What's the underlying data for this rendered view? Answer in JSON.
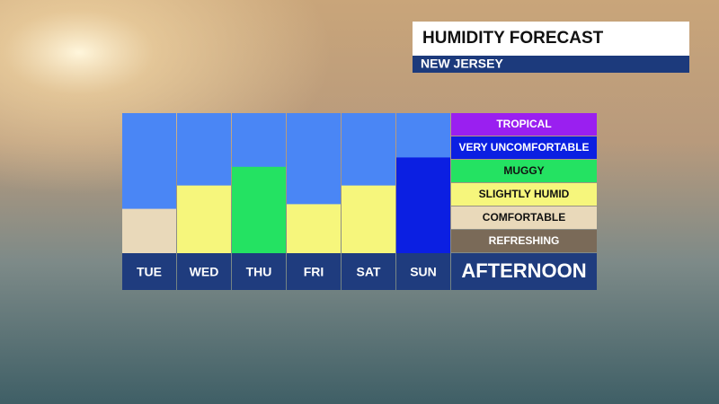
{
  "chart_data": {
    "type": "bar",
    "title": "HUMIDITY FORECAST",
    "subtitle": "NEW JERSEY",
    "period": "AFTERNOON",
    "categories": [
      "TUE",
      "WED",
      "THU",
      "FRI",
      "SAT",
      "SUN"
    ],
    "values": [
      1.9,
      2.9,
      3.7,
      2.1,
      2.9,
      4.1
    ],
    "ylim": [
      0,
      6
    ],
    "sky_color": "#4a86f5",
    "levels": [
      {
        "name": "TROPICAL",
        "color": "#9a1ff0",
        "text_color": "#ffffff"
      },
      {
        "name": "VERY UNCOMFORTABLE",
        "color": "#0b1fe2",
        "text_color": "#ffffff"
      },
      {
        "name": "MUGGY",
        "color": "#24e262",
        "text_color": "#111111"
      },
      {
        "name": "SLIGHTLY HUMID",
        "color": "#f6f67c",
        "text_color": "#111111"
      },
      {
        "name": "COMFORTABLE",
        "color": "#e9d9ba",
        "text_color": "#111111"
      },
      {
        "name": "REFRESHING",
        "color": "#7a6a58",
        "text_color": "#ffffff"
      }
    ]
  }
}
